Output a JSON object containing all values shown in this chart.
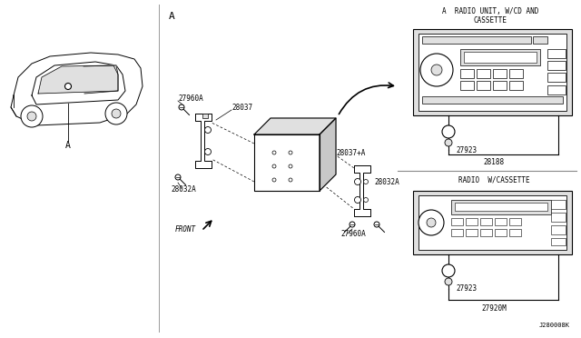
{
  "bg_color": "#ffffff",
  "line_color": "#000000",
  "gray_color": "#c8c8c8",
  "light_gray": "#e0e0e0",
  "section_label": "A",
  "car_label": "A",
  "part_labels": {
    "27960A_top": "27960A",
    "28037": "28037",
    "28032A_left": "28032A",
    "28037pA": "28037+A",
    "28032A_right": "28032A",
    "27960A_bottom": "27960A"
  },
  "radio1_title_line1": "A  RADIO UNIT, W/CD AND",
  "radio1_title_line2": "CASSETTE",
  "radio2_title": "RADIO  W/CASSETTE",
  "knob_label1": "27923",
  "box_label1": "28188",
  "knob_label2": "27923",
  "box_label2": "27920M",
  "diagram_code": "J280008K",
  "front_label": "FRONT"
}
